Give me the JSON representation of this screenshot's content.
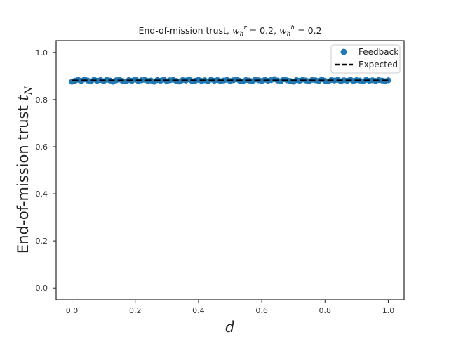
{
  "chart_data": {
    "type": "scatter",
    "title": {
      "prefix": "End-of-mission trust, ",
      "w1_sub": "h",
      "w1_sup": "r",
      "w1_value": " = 0.2, ",
      "w2_sub": "h",
      "w2_sup": "h",
      "w2_value": " = 0.2"
    },
    "xlabel": "d",
    "ylabel": {
      "text": "End-of-mission trust ",
      "symbol": "t",
      "subscript": "N"
    },
    "xlim": [
      -0.05,
      1.05
    ],
    "ylim": [
      -0.05,
      1.05
    ],
    "xticks": [
      0.0,
      0.2,
      0.4,
      0.6,
      0.8,
      1.0
    ],
    "xtick_labels": [
      "0.0",
      "0.2",
      "0.4",
      "0.6",
      "0.8",
      "1.0"
    ],
    "yticks": [
      0.0,
      0.2,
      0.4,
      0.6,
      0.8,
      1.0
    ],
    "ytick_labels": [
      "0.0",
      "0.2",
      "0.4",
      "0.6",
      "0.8",
      "1.0"
    ],
    "grid": false,
    "legend_position": "top-right",
    "series": [
      {
        "name": "Feedback",
        "kind": "scatter",
        "color": "#1f77b4",
        "x": [
          0.0,
          0.01,
          0.02,
          0.03,
          0.04,
          0.05,
          0.06,
          0.07,
          0.08,
          0.09,
          0.1,
          0.11,
          0.12,
          0.13,
          0.14,
          0.15,
          0.16,
          0.17,
          0.18,
          0.19,
          0.2,
          0.21,
          0.22,
          0.23,
          0.24,
          0.25,
          0.26,
          0.27,
          0.28,
          0.29,
          0.3,
          0.31,
          0.32,
          0.33,
          0.34,
          0.35,
          0.36,
          0.37,
          0.38,
          0.39,
          0.4,
          0.41,
          0.42,
          0.43,
          0.44,
          0.45,
          0.46,
          0.47,
          0.48,
          0.49,
          0.5,
          0.51,
          0.52,
          0.53,
          0.54,
          0.55,
          0.56,
          0.57,
          0.58,
          0.59,
          0.6,
          0.61,
          0.62,
          0.63,
          0.64,
          0.65,
          0.66,
          0.67,
          0.68,
          0.69,
          0.7,
          0.71,
          0.72,
          0.73,
          0.74,
          0.75,
          0.76,
          0.77,
          0.78,
          0.79,
          0.8,
          0.81,
          0.82,
          0.83,
          0.84,
          0.85,
          0.86,
          0.87,
          0.88,
          0.89,
          0.9,
          0.91,
          0.92,
          0.93,
          0.94,
          0.95,
          0.96,
          0.97,
          0.98,
          0.99,
          1.0
        ],
        "y": [
          0.876,
          0.88,
          0.884,
          0.879,
          0.886,
          0.881,
          0.877,
          0.885,
          0.88,
          0.883,
          0.878,
          0.884,
          0.881,
          0.876,
          0.882,
          0.885,
          0.879,
          0.877,
          0.883,
          0.88,
          0.886,
          0.878,
          0.882,
          0.884,
          0.879,
          0.881,
          0.876,
          0.883,
          0.88,
          0.885,
          0.878,
          0.882,
          0.884,
          0.879,
          0.877,
          0.883,
          0.881,
          0.886,
          0.878,
          0.88,
          0.884,
          0.879,
          0.882,
          0.877,
          0.885,
          0.88,
          0.883,
          0.878,
          0.881,
          0.884,
          0.879,
          0.882,
          0.886,
          0.88,
          0.877,
          0.883,
          0.881,
          0.878,
          0.885,
          0.882,
          0.879,
          0.884,
          0.88,
          0.883,
          0.887,
          0.881,
          0.878,
          0.886,
          0.882,
          0.879,
          0.876,
          0.883,
          0.88,
          0.885,
          0.881,
          0.878,
          0.884,
          0.882,
          0.879,
          0.886,
          0.88,
          0.877,
          0.883,
          0.881,
          0.884,
          0.878,
          0.882,
          0.88,
          0.885,
          0.879,
          0.883,
          0.881,
          0.877,
          0.884,
          0.88,
          0.882,
          0.879,
          0.883,
          0.881,
          0.878,
          0.882
        ]
      },
      {
        "name": "Expected",
        "kind": "line",
        "style": "dashed",
        "color": "#000000",
        "x": [
          0.0,
          1.0
        ],
        "y": [
          0.881,
          0.881
        ]
      }
    ]
  }
}
